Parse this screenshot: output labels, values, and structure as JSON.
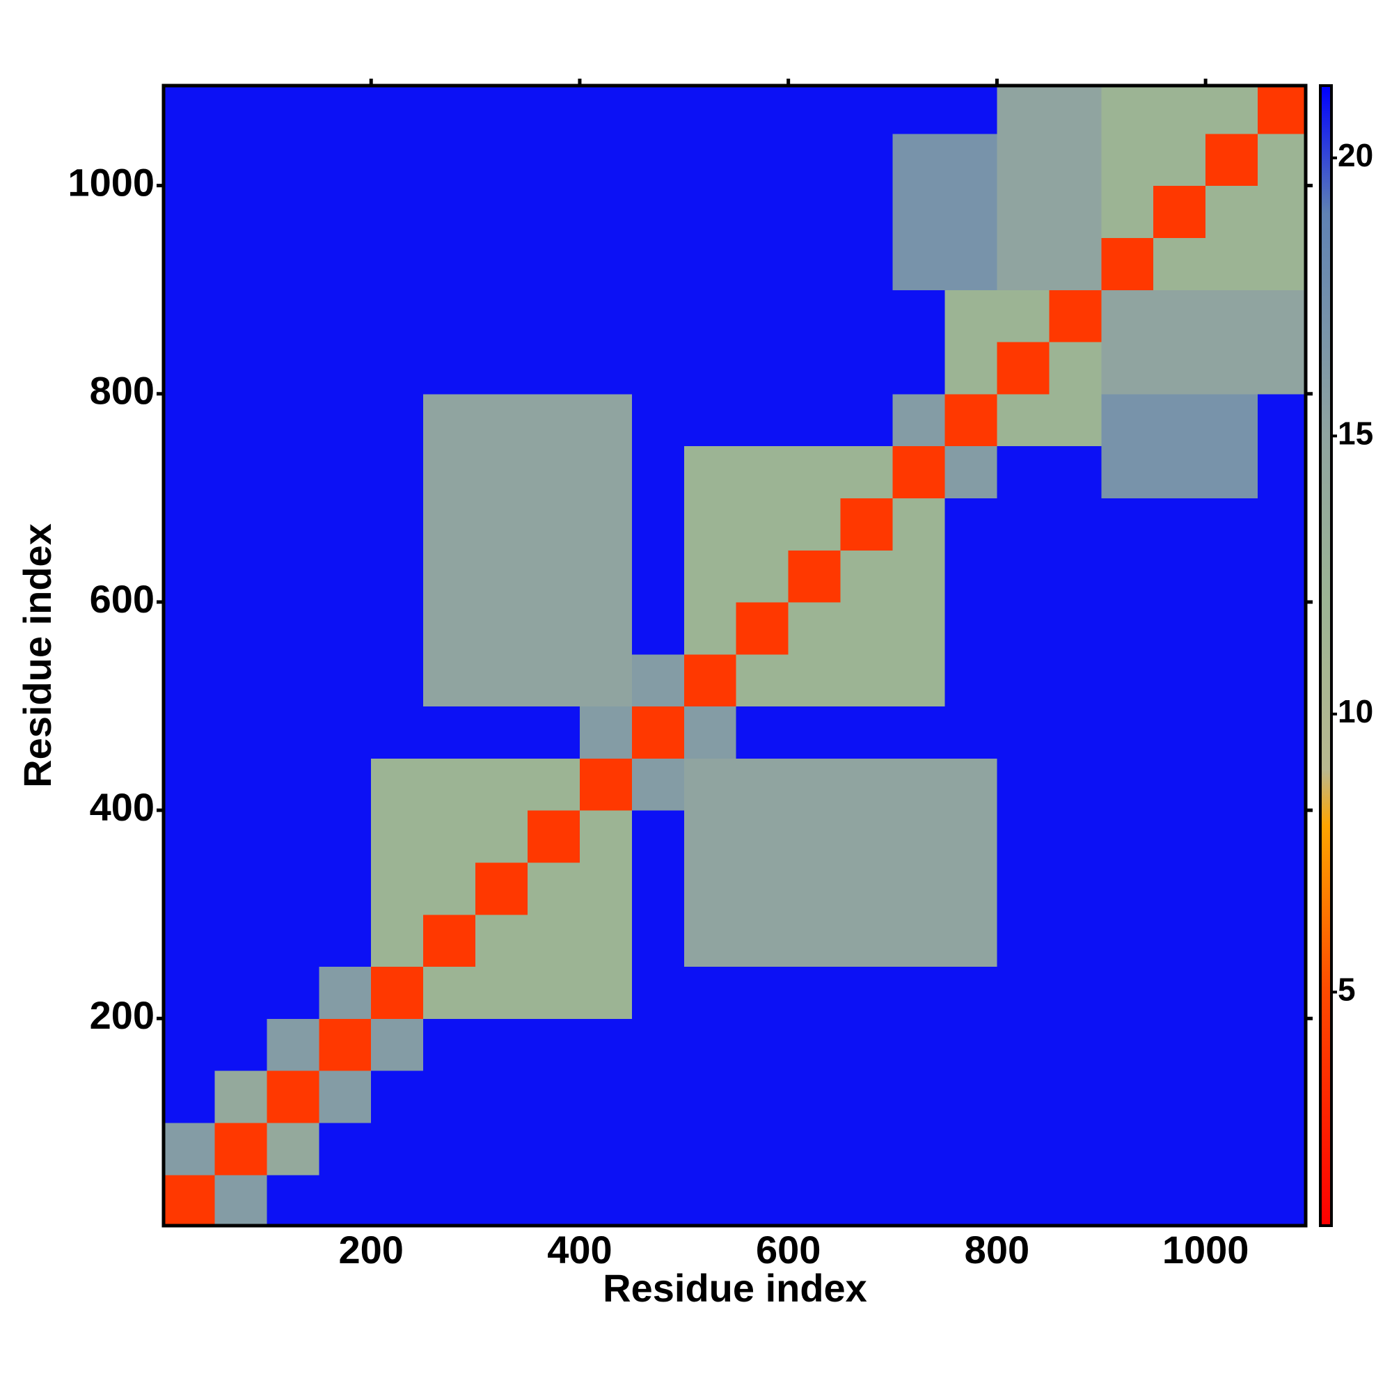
{
  "chart_data": {
    "type": "heatmap",
    "xlabel": "Residue index",
    "ylabel": "Residue index",
    "xlim": [
      1,
      1096
    ],
    "ylim": [
      1,
      1096
    ],
    "xticks": [
      200,
      400,
      600,
      800,
      1000
    ],
    "yticks": [
      200,
      400,
      600,
      800,
      1000
    ],
    "x_edges": [
      0,
      50,
      100,
      150,
      200,
      250,
      300,
      350,
      400,
      450,
      500,
      550,
      600,
      650,
      700,
      750,
      800,
      850,
      900,
      950,
      1000,
      1050,
      1100
    ],
    "y_edges": [
      0,
      50,
      100,
      150,
      200,
      250,
      300,
      350,
      400,
      450,
      500,
      550,
      600,
      650,
      700,
      750,
      800,
      850,
      900,
      950,
      1000,
      1050,
      1100
    ],
    "z": [
      [
        4,
        16,
        21,
        21,
        21,
        21,
        21,
        21,
        21,
        21,
        21,
        21,
        21,
        21,
        21,
        21,
        21,
        21,
        21,
        21,
        21,
        21
      ],
      [
        16,
        4,
        14,
        21,
        21,
        21,
        21,
        21,
        21,
        21,
        21,
        21,
        21,
        21,
        21,
        21,
        21,
        21,
        21,
        21,
        21,
        21
      ],
      [
        21,
        14,
        4,
        16,
        21,
        21,
        21,
        21,
        21,
        21,
        21,
        21,
        21,
        21,
        21,
        21,
        21,
        21,
        21,
        21,
        21,
        21
      ],
      [
        21,
        21,
        16,
        4,
        16,
        21,
        21,
        21,
        21,
        21,
        21,
        21,
        21,
        21,
        21,
        21,
        21,
        21,
        21,
        21,
        21,
        21
      ],
      [
        21,
        21,
        21,
        16,
        4,
        12,
        12,
        12,
        12,
        21,
        21,
        21,
        21,
        21,
        21,
        21,
        21,
        21,
        21,
        21,
        21,
        21
      ],
      [
        21,
        21,
        21,
        21,
        12,
        4,
        12,
        12,
        12,
        21,
        15,
        15,
        15,
        15,
        15,
        15,
        21,
        21,
        21,
        21,
        21,
        21
      ],
      [
        21,
        21,
        21,
        21,
        12,
        12,
        4,
        12,
        12,
        21,
        15,
        15,
        15,
        15,
        15,
        15,
        21,
        21,
        21,
        21,
        21,
        21
      ],
      [
        21,
        21,
        21,
        21,
        12,
        12,
        12,
        4,
        12,
        21,
        15,
        15,
        15,
        15,
        15,
        15,
        21,
        21,
        21,
        21,
        21,
        21
      ],
      [
        21,
        21,
        21,
        21,
        12,
        12,
        12,
        12,
        4,
        16,
        15,
        15,
        15,
        15,
        15,
        15,
        21,
        21,
        21,
        21,
        21,
        21
      ],
      [
        21,
        21,
        21,
        21,
        21,
        21,
        21,
        21,
        16,
        4,
        16,
        21,
        21,
        21,
        21,
        21,
        21,
        21,
        21,
        21,
        21,
        21
      ],
      [
        21,
        21,
        21,
        21,
        21,
        15,
        15,
        15,
        15,
        16,
        4,
        12,
        12,
        12,
        12,
        21,
        21,
        21,
        21,
        21,
        21,
        21
      ],
      [
        21,
        21,
        21,
        21,
        21,
        15,
        15,
        15,
        15,
        21,
        12,
        4,
        12,
        12,
        12,
        21,
        21,
        21,
        21,
        21,
        21,
        21
      ],
      [
        21,
        21,
        21,
        21,
        21,
        15,
        15,
        15,
        15,
        21,
        12,
        12,
        4,
        12,
        12,
        21,
        21,
        21,
        21,
        21,
        21,
        21
      ],
      [
        21,
        21,
        21,
        21,
        21,
        15,
        15,
        15,
        15,
        21,
        12,
        12,
        12,
        4,
        12,
        21,
        21,
        21,
        21,
        21,
        21,
        21
      ],
      [
        21,
        21,
        21,
        21,
        21,
        15,
        15,
        15,
        15,
        21,
        12,
        12,
        12,
        12,
        4,
        16,
        21,
        21,
        17,
        17,
        17,
        21
      ],
      [
        21,
        21,
        21,
        21,
        21,
        15,
        15,
        15,
        15,
        21,
        21,
        21,
        21,
        21,
        16,
        4,
        12,
        12,
        17,
        17,
        17,
        21
      ],
      [
        21,
        21,
        21,
        21,
        21,
        21,
        21,
        21,
        21,
        21,
        21,
        21,
        21,
        21,
        21,
        12,
        4,
        12,
        15,
        15,
        15,
        15
      ],
      [
        21,
        21,
        21,
        21,
        21,
        21,
        21,
        21,
        21,
        21,
        21,
        21,
        21,
        21,
        21,
        12,
        12,
        4,
        15,
        15,
        15,
        15
      ],
      [
        21,
        21,
        21,
        21,
        21,
        21,
        21,
        21,
        21,
        21,
        21,
        21,
        21,
        21,
        17,
        17,
        15,
        15,
        4,
        12,
        12,
        12
      ],
      [
        21,
        21,
        21,
        21,
        21,
        21,
        21,
        21,
        21,
        21,
        21,
        21,
        21,
        21,
        17,
        17,
        15,
        15,
        12,
        4,
        12,
        12
      ],
      [
        21,
        21,
        21,
        21,
        21,
        21,
        21,
        21,
        21,
        21,
        21,
        21,
        21,
        21,
        17,
        17,
        15,
        15,
        12,
        12,
        4,
        12
      ],
      [
        21,
        21,
        21,
        21,
        21,
        21,
        21,
        21,
        21,
        21,
        21,
        21,
        21,
        21,
        21,
        21,
        15,
        15,
        12,
        12,
        12,
        4
      ]
    ],
    "colorscale": [
      [
        0.8,
        "#ff0000"
      ],
      [
        5,
        "#ff4a00"
      ],
      [
        8,
        "#ffa500"
      ],
      [
        9,
        "#b8b890"
      ],
      [
        12,
        "#9cb494"
      ],
      [
        15,
        "#90a4a0"
      ],
      [
        19,
        "#5f82b4"
      ],
      [
        21.3,
        "#0000ff"
      ]
    ],
    "clim": [
      0.8,
      21.3
    ],
    "cticks": [
      5,
      10,
      15,
      20
    ]
  }
}
